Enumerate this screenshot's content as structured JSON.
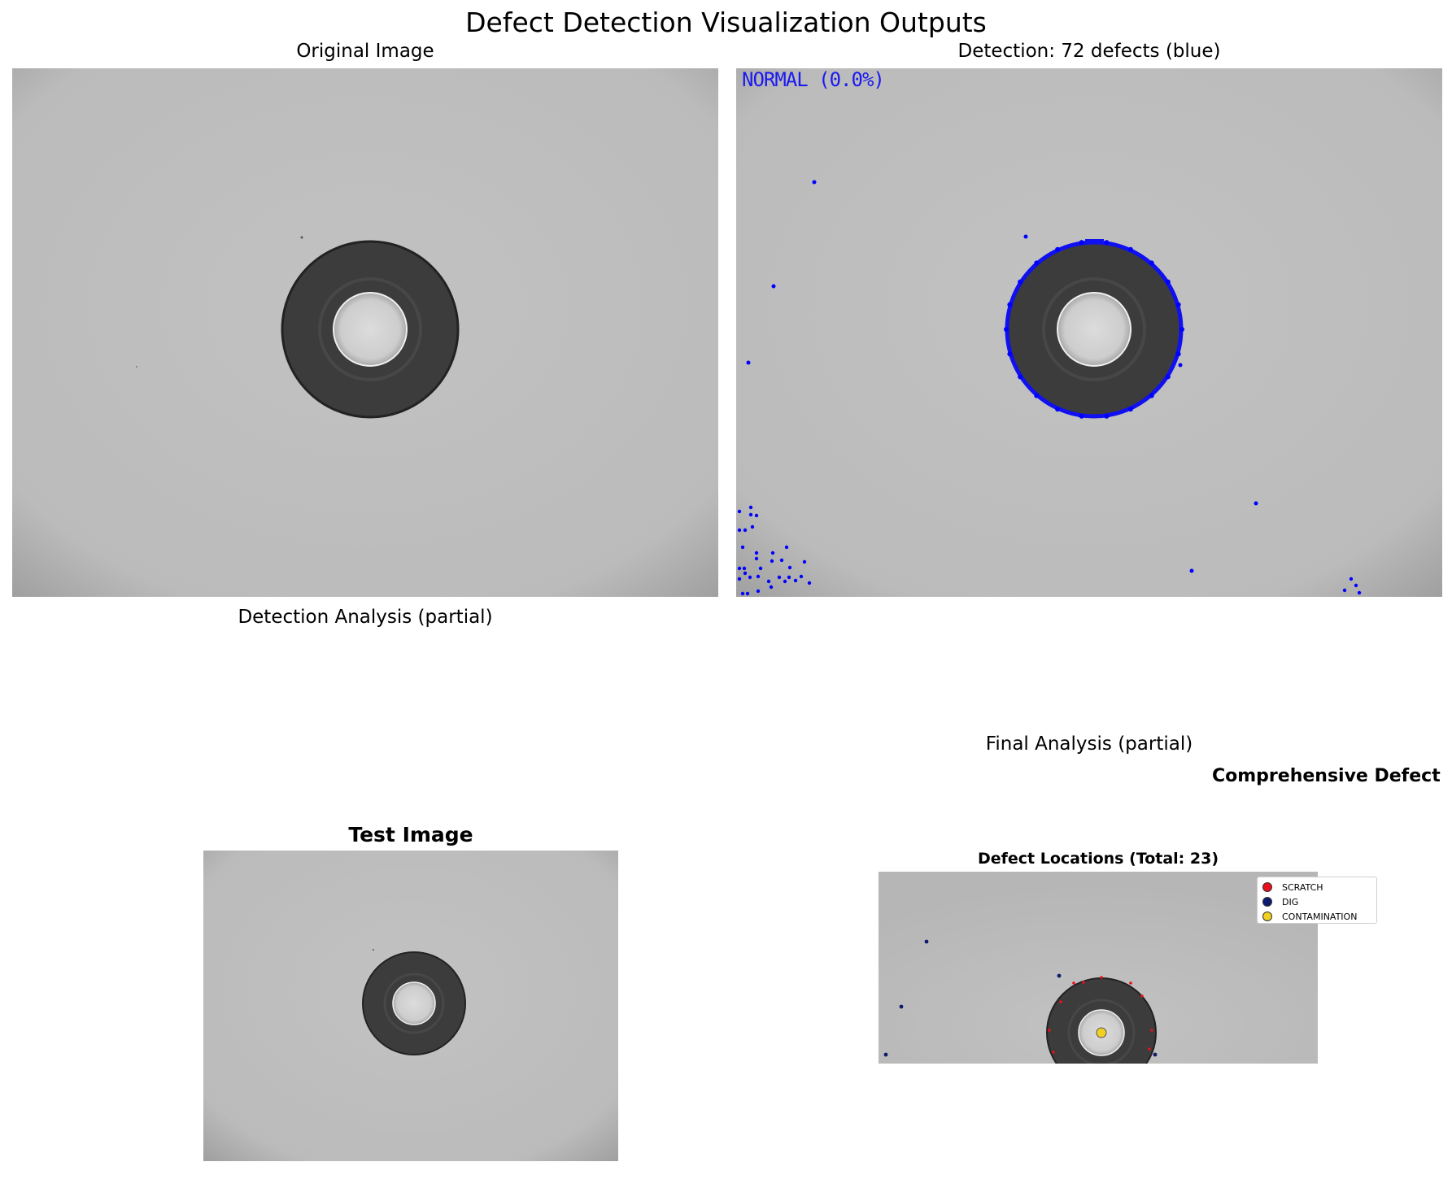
{
  "figure": {
    "suptitle": "Defect Detection Visualization Outputs"
  },
  "panels": {
    "original": {
      "title": "Original Image"
    },
    "detection": {
      "title": "Detection: 72 defects (blue)",
      "status": "NORMAL (0.0%)",
      "marker_color": "#0000ff"
    },
    "analysis": {
      "title": "Detection Analysis (partial)",
      "subtitle": "Test Image"
    },
    "final": {
      "title": "Final Analysis (partial)",
      "heading": "Comprehensive Defect",
      "subtitle": "Defect Locations (Total: 23)",
      "legend": [
        {
          "label": "SCRATCH",
          "color": "#e8101a"
        },
        {
          "label": "DIG",
          "color": "#0d1a6e"
        },
        {
          "label": "CONTAMINATION",
          "color": "#f0d020"
        }
      ]
    }
  }
}
